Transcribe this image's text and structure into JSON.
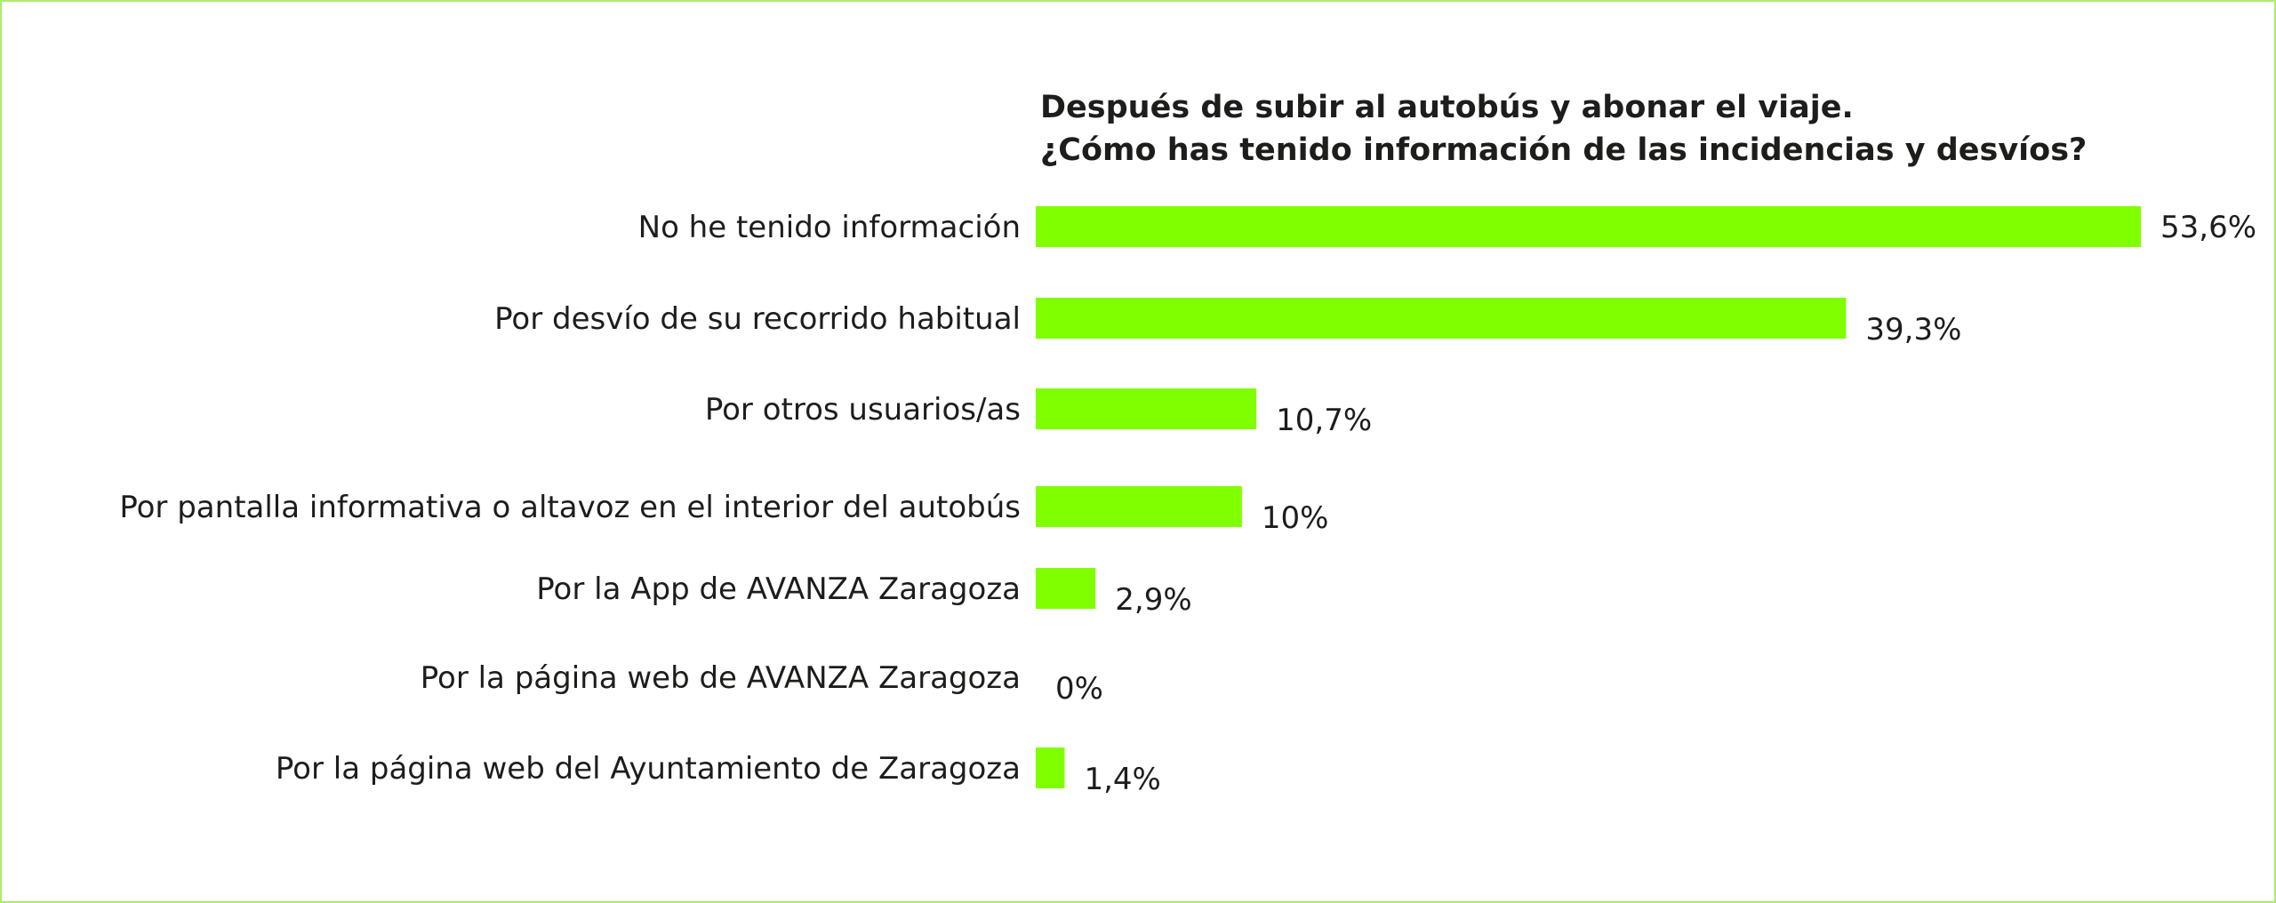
{
  "chart_data": {
    "type": "bar",
    "orientation": "horizontal",
    "title": "Después de subir al autobús y abonar el viaje.\n¿Cómo has tenido información de las incidencias y desvíos?",
    "title_lines": [
      "Después de subir al autobús y abonar el viaje.",
      "¿Cómo has tenido información de las incidencias y desvíos?"
    ],
    "categories": [
      "No he tenido información",
      "Por desvío de su recorrido habitual",
      "Por otros usuarios/as",
      "Por pantalla informativa o altavoz en el interior del autobús",
      "Por la App de AVANZA Zaragoza",
      "Por la página web de AVANZA Zaragoza",
      "Por la página web del Ayuntamiento de Zaragoza"
    ],
    "values": [
      53.6,
      39.3,
      10.7,
      10,
      2.9,
      0,
      1.4
    ],
    "value_labels": [
      "53,6%",
      "39,3%",
      "10,7%",
      "10%",
      "2,9%",
      "0%",
      "1,4%"
    ],
    "unit": "%",
    "xlabel": "",
    "ylabel": "",
    "xlim": [
      0,
      53.6
    ],
    "grid": false,
    "legend": "none",
    "colors": {
      "bar": "#80ff00",
      "text": "#1d1d1b",
      "frame": "#a8ee6a"
    }
  }
}
